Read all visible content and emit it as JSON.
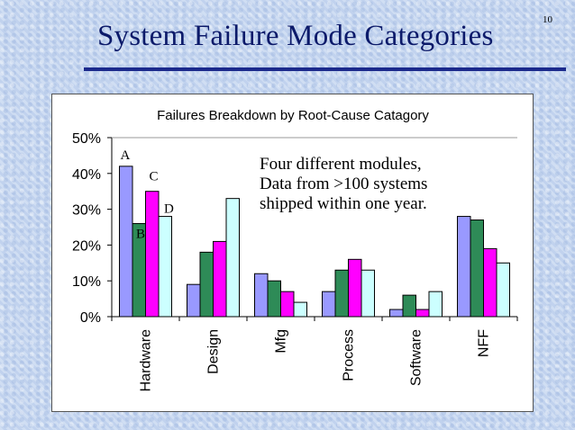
{
  "slide": {
    "title": "System Failure Mode Categories",
    "page_number": "10"
  },
  "annotation": {
    "lines": [
      "Four different modules,",
      "Data from >100 systems",
      "shipped within one year."
    ]
  },
  "colors": {
    "title": "#0c1a6a",
    "rule": "#1c2a8c",
    "series": [
      "#9999ff",
      "#2e8b57",
      "#ff00ff",
      "#ccffff"
    ]
  },
  "chart_data": {
    "type": "bar",
    "title": "Failures Breakdown by Root-Cause Catagory",
    "xlabel": "",
    "ylabel": "",
    "categories": [
      "Hardware",
      "Design",
      "Mfg",
      "Process",
      "Software",
      "NFF"
    ],
    "ylim": [
      0,
      50
    ],
    "y_ticks": [
      "0%",
      "10%",
      "20%",
      "30%",
      "40%",
      "50%"
    ],
    "grid": false,
    "legend": "none",
    "series": [
      {
        "name": "A",
        "values": [
          42,
          9,
          12,
          7,
          2,
          28
        ]
      },
      {
        "name": "B",
        "values": [
          26,
          18,
          10,
          13,
          6,
          27
        ]
      },
      {
        "name": "C",
        "values": [
          35,
          21,
          7,
          16,
          2,
          19
        ]
      },
      {
        "name": "D",
        "values": [
          28,
          33,
          4,
          13,
          7,
          15
        ]
      }
    ]
  }
}
